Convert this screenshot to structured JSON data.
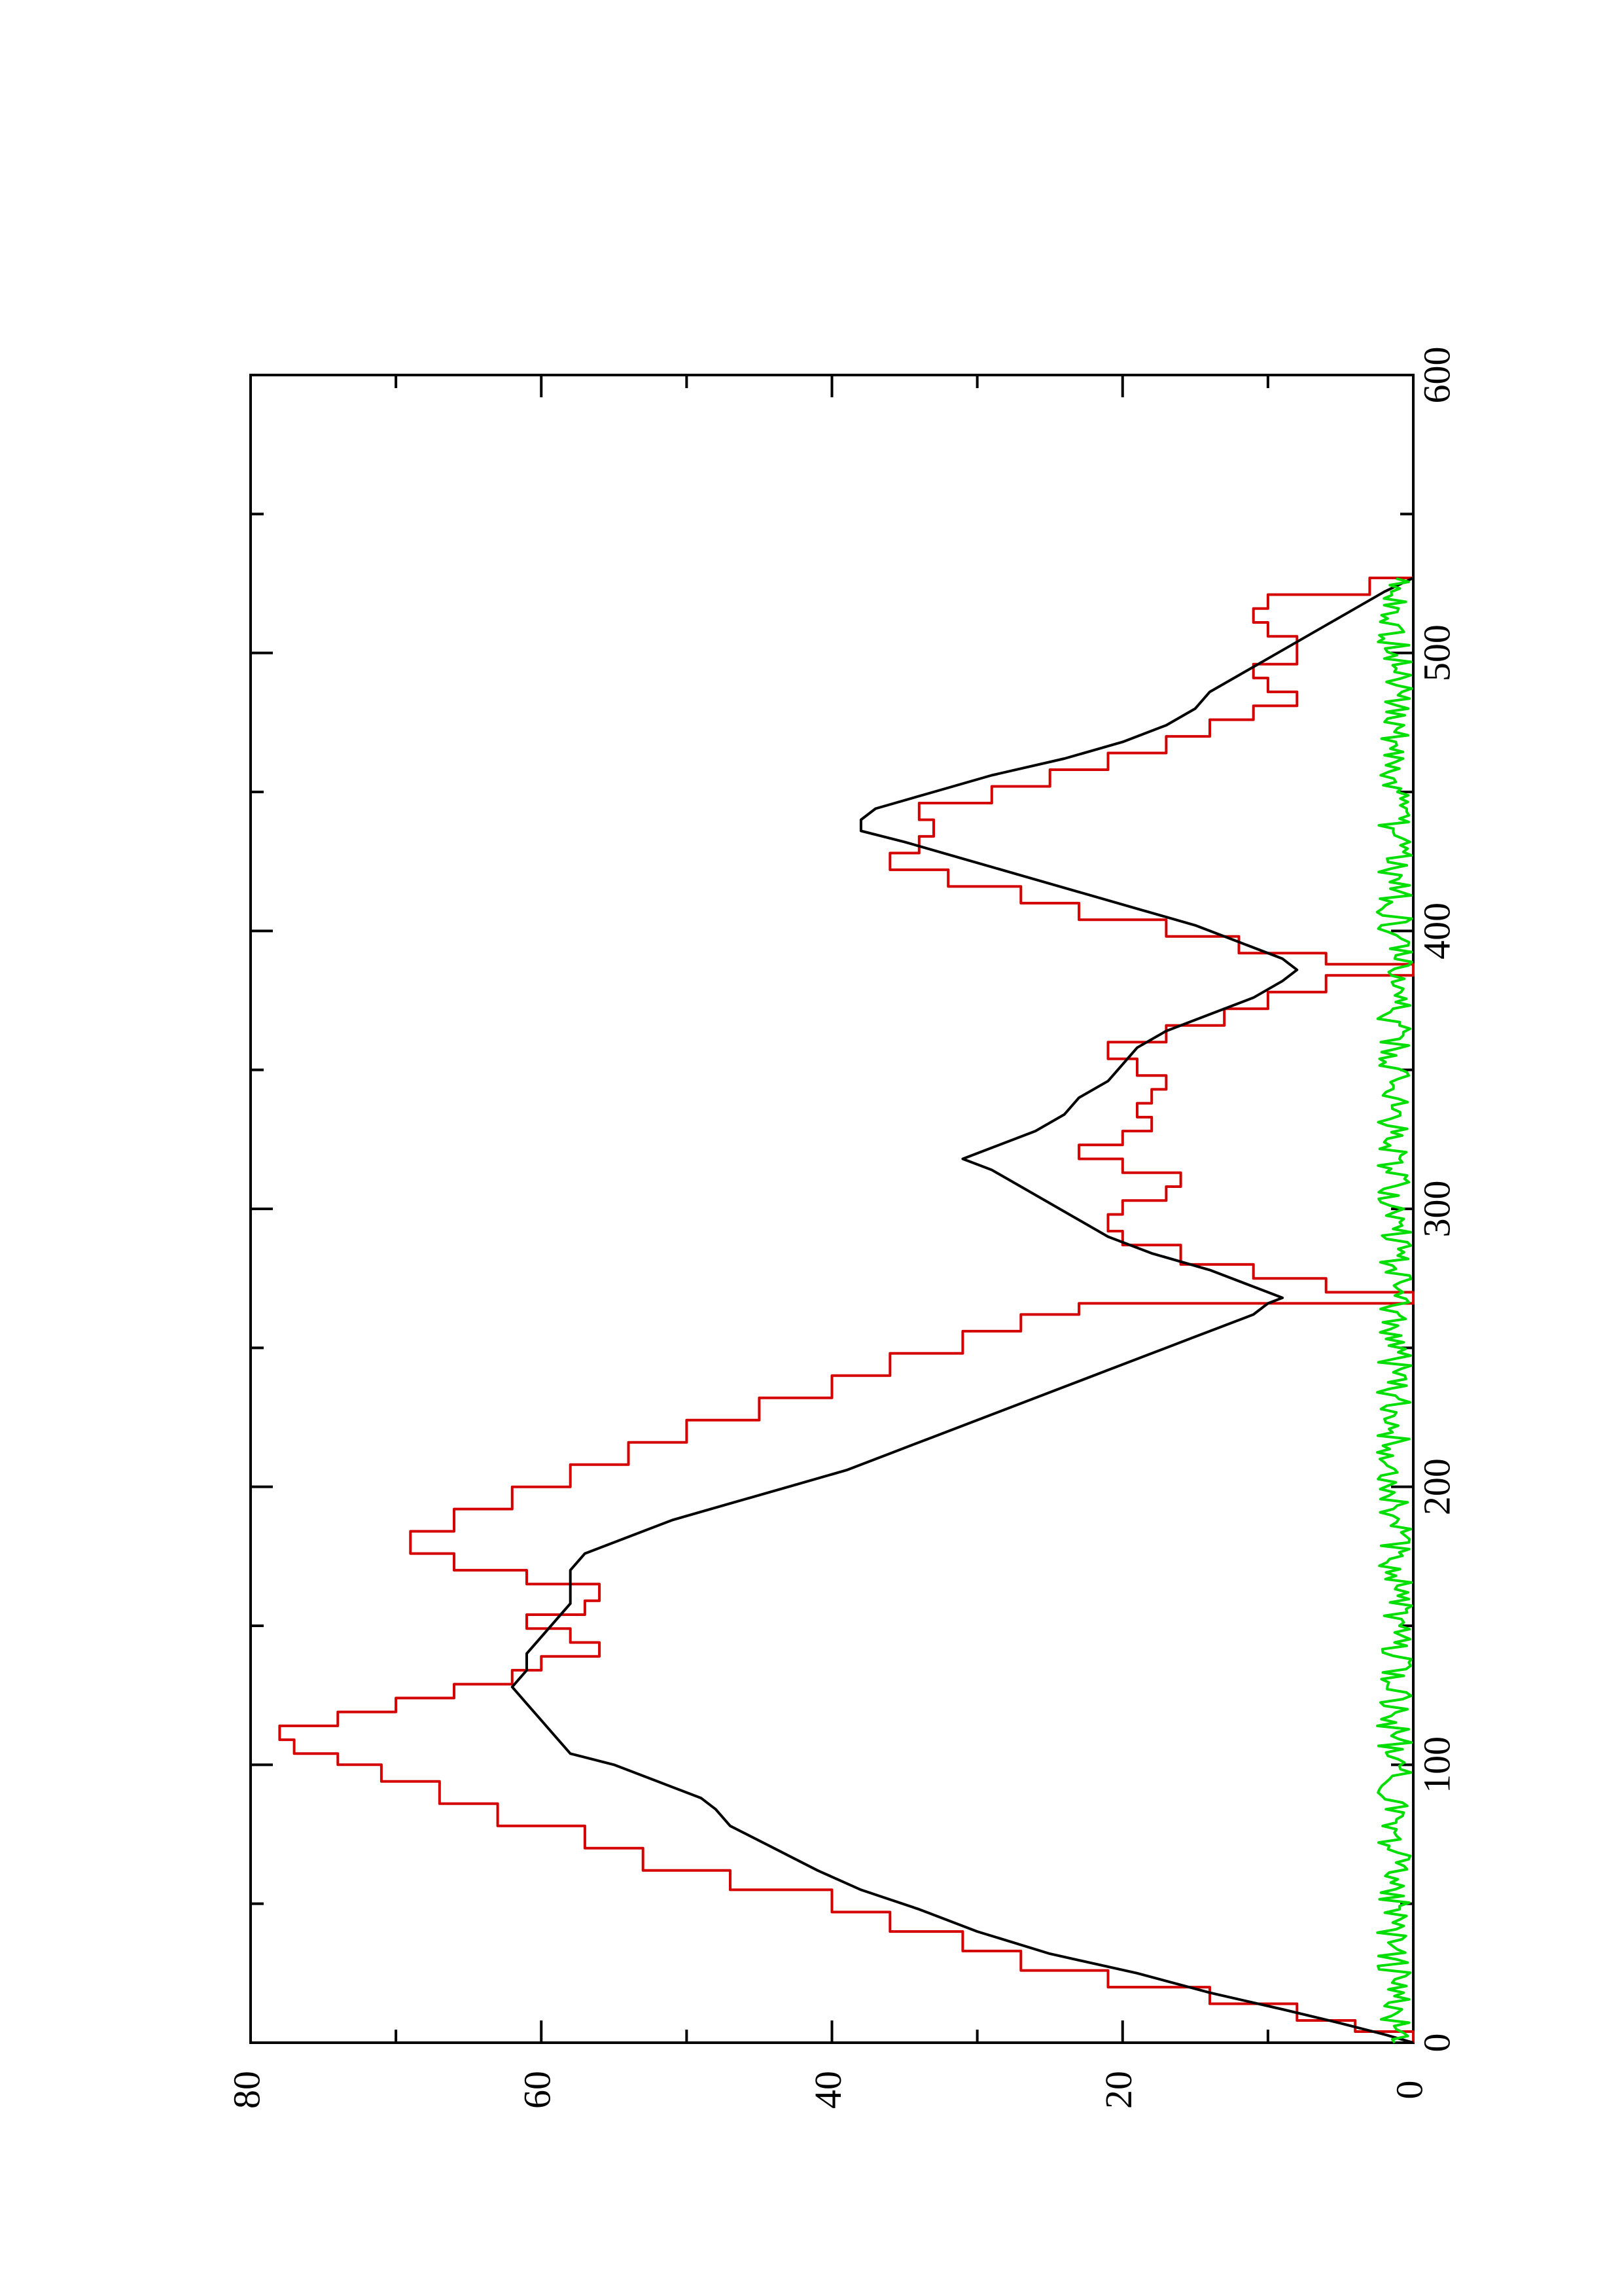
{
  "chart_data": {
    "type": "line",
    "orientation": "rotated-90-ccw",
    "title": "",
    "xlabel": "",
    "ylabel": "",
    "xlim": [
      0,
      600
    ],
    "ylim": [
      0,
      80
    ],
    "x_ticks": [
      0,
      100,
      200,
      300,
      400,
      500,
      600
    ],
    "x_tick_labels": [
      "0",
      "100",
      "200",
      "300",
      "400",
      "500",
      "600"
    ],
    "x_minor_ticks": [
      50,
      150,
      250,
      350,
      450,
      550
    ],
    "y_ticks": [
      0,
      20,
      40,
      60,
      80
    ],
    "y_tick_labels": [
      "0",
      "20",
      "40",
      "60",
      "80"
    ],
    "y_minor_ticks": [
      10,
      30,
      50,
      70
    ],
    "grid": false,
    "series": [
      {
        "color": "#d40000",
        "style": "step",
        "x": [
          0,
          4,
          8,
          14,
          20,
          26,
          33,
          40,
          47,
          55,
          62,
          70,
          78,
          86,
          94,
          100,
          104,
          109,
          114,
          119,
          124,
          129,
          134,
          139,
          144,
          149,
          154,
          159,
          165,
          170,
          176,
          184,
          192,
          200,
          208,
          216,
          224,
          232,
          240,
          248,
          256,
          262,
          266,
          270,
          275,
          280,
          287,
          292,
          298,
          303,
          308,
          313,
          318,
          323,
          328,
          333,
          338,
          343,
          348,
          354,
          360,
          366,
          372,
          378,
          384,
          388,
          392,
          398,
          404,
          410,
          416,
          422,
          428,
          434,
          440,
          446,
          452,
          458,
          464,
          470,
          476,
          481,
          486,
          491,
          496,
          501,
          506,
          511,
          516,
          521,
          527
        ],
        "y": [
          0,
          4,
          8,
          14,
          21,
          27,
          31,
          36,
          40,
          47,
          53,
          57,
          63,
          67,
          71,
          74,
          77,
          78,
          74,
          70,
          66,
          62,
          60,
          56,
          58,
          61,
          57,
          56,
          61,
          66,
          69,
          66,
          62,
          58,
          54,
          50,
          45,
          40,
          36,
          31,
          27,
          23,
          0,
          6,
          11,
          16,
          20,
          21,
          20,
          17,
          16,
          20,
          23,
          20,
          18,
          19,
          18,
          17,
          19,
          21,
          17,
          13,
          10,
          6,
          0,
          6,
          12,
          17,
          23,
          27,
          32,
          36,
          34,
          33,
          34,
          29,
          25,
          21,
          17,
          14,
          11,
          8,
          10,
          11,
          8,
          8,
          10,
          11,
          10,
          3,
          0
        ]
      },
      {
        "color": "#000000",
        "style": "line",
        "x": [
          0,
          3,
          7,
          12,
          18,
          25,
          32,
          40,
          48,
          55,
          62,
          70,
          78,
          84,
          88,
          94,
          100,
          104,
          110,
          116,
          122,
          128,
          134,
          140,
          146,
          152,
          158,
          164,
          170,
          176,
          182,
          188,
          194,
          200,
          206,
          212,
          218,
          224,
          230,
          236,
          242,
          248,
          254,
          258,
          262,
          266,
          268,
          272,
          278,
          284,
          290,
          296,
          302,
          308,
          314,
          318,
          322,
          328,
          334,
          340,
          346,
          352,
          358,
          364,
          370,
          376,
          382,
          386,
          390,
          396,
          402,
          408,
          414,
          420,
          426,
          432,
          436,
          440,
          444,
          450,
          456,
          462,
          468,
          474,
          480,
          486,
          492,
          498,
          504,
          510,
          516,
          522,
          527
        ],
        "y": [
          0,
          2,
          5,
          9,
          14,
          19,
          25,
          30,
          34,
          38,
          41,
          44,
          47,
          48,
          49,
          52,
          55,
          58,
          59,
          60,
          61,
          62,
          61,
          61,
          60,
          59,
          58,
          58,
          58,
          57,
          54,
          51,
          47,
          43,
          39,
          36,
          33,
          30,
          27,
          24,
          21,
          18,
          15,
          13,
          11,
          10,
          9,
          11,
          14,
          18,
          21,
          23,
          25,
          27,
          29,
          31,
          29,
          26,
          24,
          23,
          21,
          20,
          19,
          17,
          14,
          11,
          9,
          8,
          9,
          12,
          15,
          19,
          23,
          27,
          31,
          35,
          38,
          38,
          37,
          33,
          29,
          24,
          20,
          17,
          15,
          14,
          12,
          10,
          8,
          6,
          4,
          2,
          0
        ]
      },
      {
        "color": "#00dd00",
        "style": "noisy-line",
        "x_range": [
          0,
          527
        ],
        "mean": 1.3,
        "amplitude": 1.2
      }
    ]
  }
}
